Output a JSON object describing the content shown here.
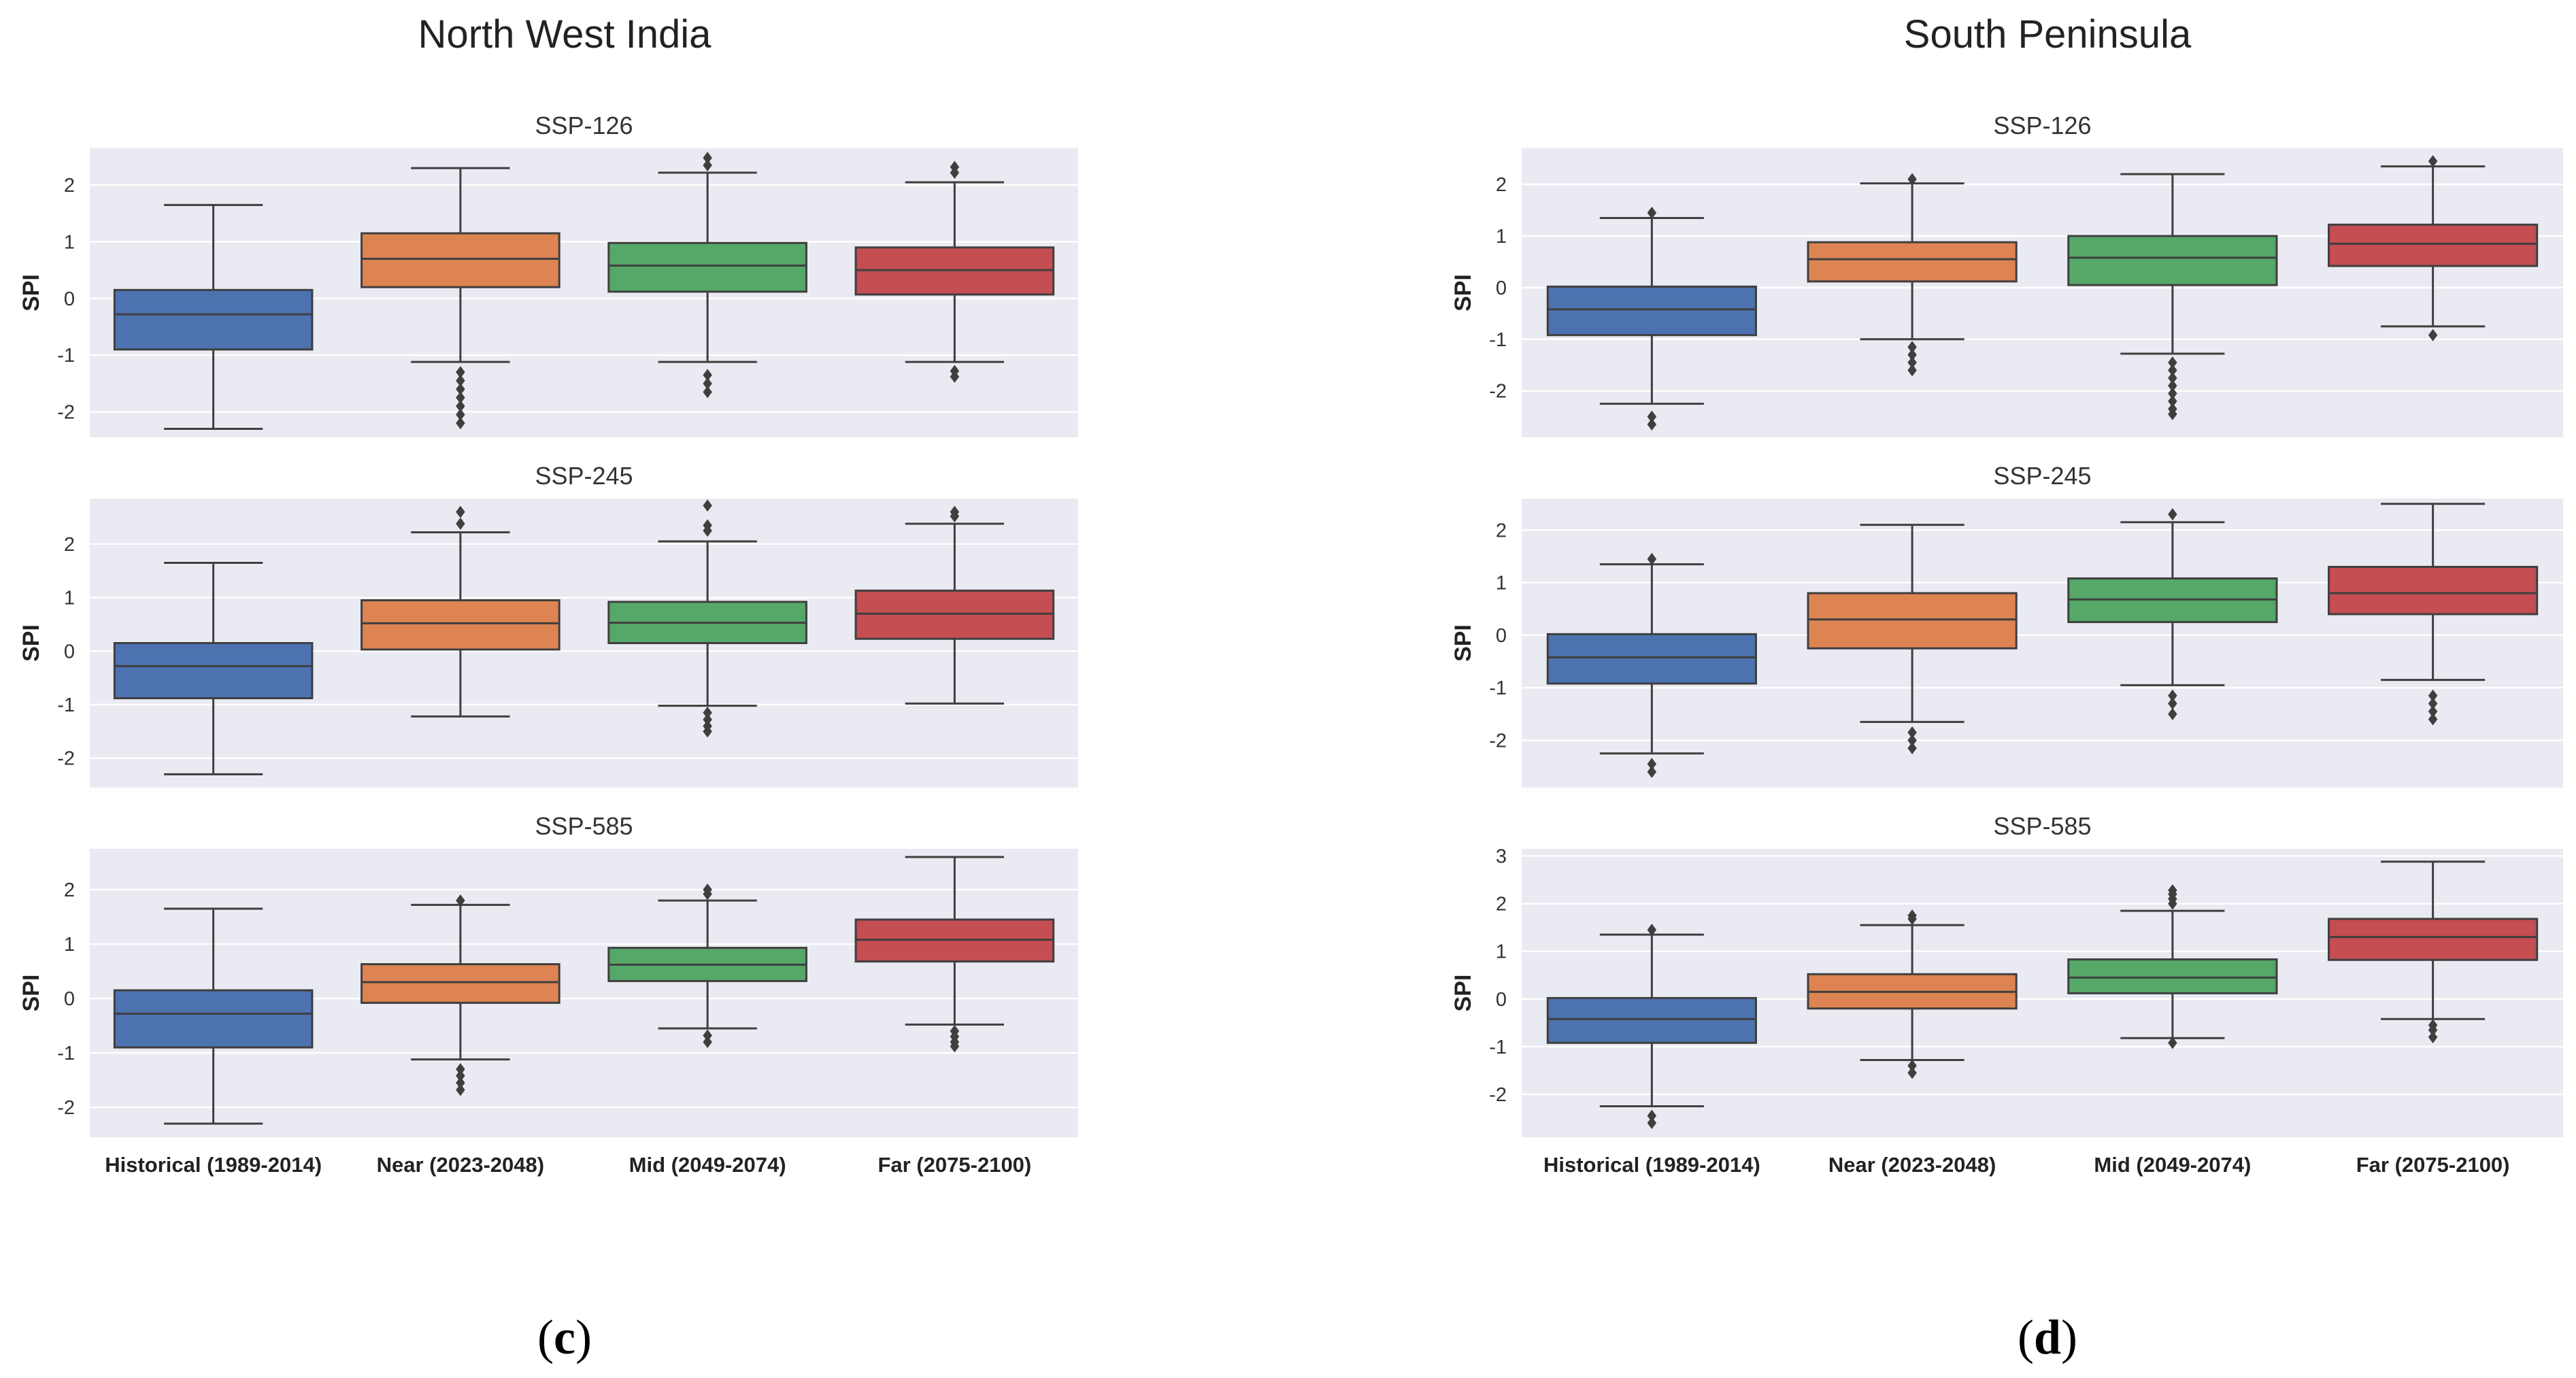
{
  "chart_data": [
    {
      "type": "box",
      "panel_label": "c",
      "title": "North West India",
      "xlabel": "",
      "ylabel": "SPI",
      "categories": [
        "Historical (1989-2014)",
        "Near (2023-2048)",
        "Mid (2049-2074)",
        "Far (2075-2100)"
      ],
      "colors": [
        "#4C72B0",
        "#DD8452",
        "#55A868",
        "#C44E52"
      ],
      "subplots": [
        {
          "name": "SSP-126",
          "ylim": [
            -2.45,
            2.65
          ],
          "yticks": [
            -2,
            -1,
            0,
            1,
            2
          ],
          "boxes": [
            {
              "whislo": -2.3,
              "q1": -0.9,
              "med": -0.28,
              "q3": 0.15,
              "whishi": 1.65,
              "fliers": []
            },
            {
              "whislo": -1.12,
              "q1": 0.2,
              "med": 0.7,
              "q3": 1.15,
              "whishi": 2.3,
              "fliers": [
                -1.3,
                -1.45,
                -1.6,
                -1.75,
                -1.9,
                -2.05,
                -2.2
              ]
            },
            {
              "whislo": -1.12,
              "q1": 0.12,
              "med": 0.58,
              "q3": 0.98,
              "whishi": 2.22,
              "fliers": [
                -1.35,
                -1.5,
                -1.65,
                2.35,
                2.48
              ]
            },
            {
              "whislo": -1.12,
              "q1": 0.07,
              "med": 0.5,
              "q3": 0.9,
              "whishi": 2.05,
              "fliers": [
                -1.28,
                -1.38,
                2.22,
                2.32
              ]
            }
          ]
        },
        {
          "name": "SSP-245",
          "ylim": [
            -2.55,
            2.85
          ],
          "yticks": [
            -2,
            -1,
            0,
            1,
            2
          ],
          "boxes": [
            {
              "whislo": -2.3,
              "q1": -0.88,
              "med": -0.28,
              "q3": 0.15,
              "whishi": 1.65,
              "fliers": []
            },
            {
              "whislo": -1.22,
              "q1": 0.03,
              "med": 0.52,
              "q3": 0.95,
              "whishi": 2.22,
              "fliers": [
                2.38,
                2.6
              ]
            },
            {
              "whislo": -1.02,
              "q1": 0.15,
              "med": 0.53,
              "q3": 0.92,
              "whishi": 2.05,
              "fliers": [
                -1.15,
                -1.28,
                -1.4,
                -1.5,
                2.25,
                2.35,
                2.72
              ]
            },
            {
              "whislo": -0.98,
              "q1": 0.23,
              "med": 0.7,
              "q3": 1.13,
              "whishi": 2.38,
              "fliers": [
                2.52,
                2.6
              ]
            }
          ]
        },
        {
          "name": "SSP-585",
          "ylim": [
            -2.55,
            2.75
          ],
          "yticks": [
            -2,
            -1,
            0,
            1,
            2
          ],
          "boxes": [
            {
              "whislo": -2.3,
              "q1": -0.9,
              "med": -0.28,
              "q3": 0.15,
              "whishi": 1.65,
              "fliers": []
            },
            {
              "whislo": -1.12,
              "q1": -0.08,
              "med": 0.3,
              "q3": 0.63,
              "whishi": 1.72,
              "fliers": [
                -1.3,
                -1.42,
                -1.55,
                -1.68,
                1.8
              ]
            },
            {
              "whislo": -0.55,
              "q1": 0.32,
              "med": 0.62,
              "q3": 0.93,
              "whishi": 1.8,
              "fliers": [
                -0.68,
                -0.8,
                1.92,
                2.0
              ]
            },
            {
              "whislo": -0.48,
              "q1": 0.68,
              "med": 1.08,
              "q3": 1.45,
              "whishi": 2.6,
              "fliers": [
                -0.6,
                -0.7,
                -0.8,
                -0.88
              ]
            }
          ]
        }
      ]
    },
    {
      "type": "box",
      "panel_label": "d",
      "title": "South Peninsula",
      "xlabel": "",
      "ylabel": "SPI",
      "categories": [
        "Historical (1989-2014)",
        "Near (2023-2048)",
        "Mid (2049-2074)",
        "Far (2075-2100)"
      ],
      "colors": [
        "#4C72B0",
        "#DD8452",
        "#55A868",
        "#C44E52"
      ],
      "subplots": [
        {
          "name": "SSP-126",
          "ylim": [
            -2.9,
            2.7
          ],
          "yticks": [
            -2,
            -1,
            0,
            1,
            2
          ],
          "boxes": [
            {
              "whislo": -2.25,
              "q1": -0.92,
              "med": -0.42,
              "q3": 0.02,
              "whishi": 1.35,
              "fliers": [
                -2.5,
                -2.65,
                1.45
              ]
            },
            {
              "whislo": -1.0,
              "q1": 0.12,
              "med": 0.55,
              "q3": 0.88,
              "whishi": 2.02,
              "fliers": [
                -1.15,
                -1.3,
                -1.45,
                -1.6,
                2.1
              ]
            },
            {
              "whislo": -1.28,
              "q1": 0.05,
              "med": 0.58,
              "q3": 1.0,
              "whishi": 2.2,
              "fliers": [
                -1.45,
                -1.6,
                -1.75,
                -1.9,
                -2.05,
                -2.2,
                -2.35,
                -2.45
              ]
            },
            {
              "whislo": -0.75,
              "q1": 0.42,
              "med": 0.85,
              "q3": 1.22,
              "whishi": 2.35,
              "fliers": [
                -0.92,
                2.45
              ]
            }
          ]
        },
        {
          "name": "SSP-245",
          "ylim": [
            -2.9,
            2.6
          ],
          "yticks": [
            -2,
            -1,
            0,
            1,
            2
          ],
          "boxes": [
            {
              "whislo": -2.25,
              "q1": -0.92,
              "med": -0.42,
              "q3": 0.02,
              "whishi": 1.35,
              "fliers": [
                -2.45,
                -2.6,
                1.45
              ]
            },
            {
              "whislo": -1.65,
              "q1": -0.25,
              "med": 0.3,
              "q3": 0.8,
              "whishi": 2.1,
              "fliers": [
                -1.85,
                -2.0,
                -2.15
              ]
            },
            {
              "whislo": -0.95,
              "q1": 0.25,
              "med": 0.68,
              "q3": 1.08,
              "whishi": 2.15,
              "fliers": [
                -1.15,
                -1.3,
                -1.5,
                2.3
              ]
            },
            {
              "whislo": -0.85,
              "q1": 0.4,
              "med": 0.8,
              "q3": 1.3,
              "whishi": 2.5,
              "fliers": [
                -1.15,
                -1.3,
                -1.45,
                -1.6
              ]
            }
          ]
        },
        {
          "name": "SSP-585",
          "ylim": [
            -2.9,
            3.15
          ],
          "yticks": [
            -2,
            -1,
            0,
            1,
            2,
            3
          ],
          "boxes": [
            {
              "whislo": -2.25,
              "q1": -0.92,
              "med": -0.42,
              "q3": 0.02,
              "whishi": 1.35,
              "fliers": [
                -2.45,
                -2.6,
                1.45
              ]
            },
            {
              "whislo": -1.28,
              "q1": -0.2,
              "med": 0.15,
              "q3": 0.52,
              "whishi": 1.55,
              "fliers": [
                -1.4,
                -1.55,
                1.68,
                1.75
              ]
            },
            {
              "whislo": -0.82,
              "q1": 0.12,
              "med": 0.45,
              "q3": 0.83,
              "whishi": 1.85,
              "fliers": [
                -0.92,
                2.0,
                2.1,
                2.2,
                2.28
              ]
            },
            {
              "whislo": -0.42,
              "q1": 0.82,
              "med": 1.3,
              "q3": 1.68,
              "whishi": 2.88,
              "fliers": [
                -0.55,
                -0.65,
                -0.8
              ]
            }
          ]
        }
      ]
    }
  ]
}
